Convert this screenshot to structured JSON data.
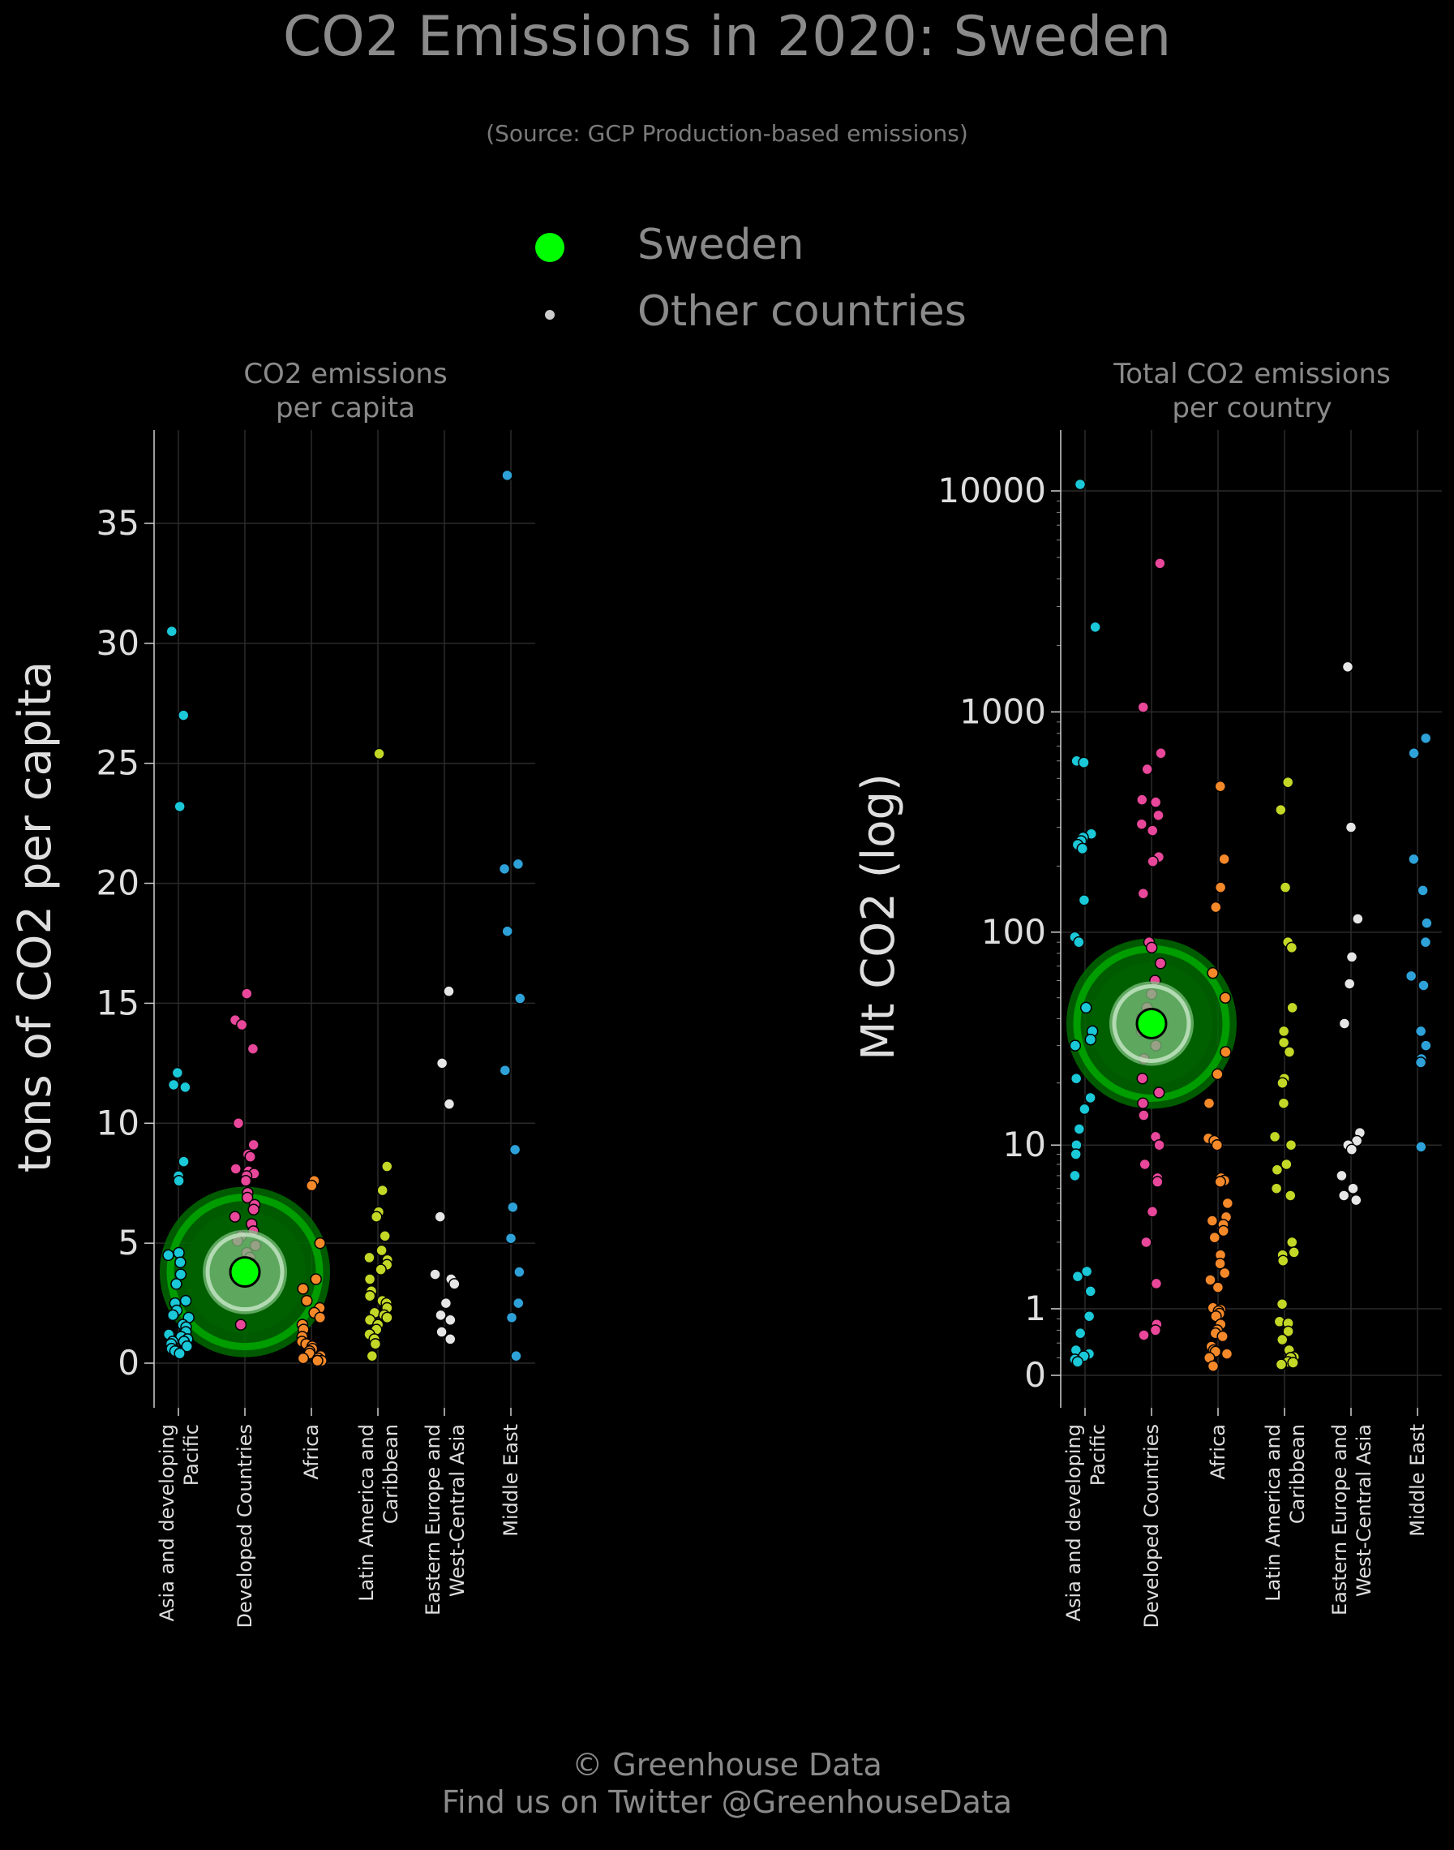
{
  "title": "CO2 Emissions in 2020: Sweden",
  "subtitle": "(Source: GCP Production-based emissions)",
  "legend": [
    {
      "label": "Sweden",
      "color": "#00ff00"
    },
    {
      "label": "Other countries",
      "color": "#cccccc"
    }
  ],
  "footer": {
    "line1": "© Greenhouse Data",
    "line2": "Find us on Twitter @GreenhouseData"
  },
  "colors": {
    "Asia and developing Pacific": "#1ac8d8",
    "Developed Countries": "#e8479a",
    "Africa": "#f5892a",
    "Latin America and Caribbean": "#c3d826",
    "Eastern Europe and West-Central Asia": "#e6e6e6",
    "Middle East": "#2ea2d8",
    "highlight": "#00ff00"
  },
  "chart_data": [
    {
      "type": "scatter",
      "title": "CO2 emissions\nper capita",
      "ylabel": "tons of CO2 per capita",
      "ylim": [
        0,
        38
      ],
      "yscale": "linear",
      "yticks": [
        0,
        5,
        10,
        15,
        20,
        25,
        30,
        35
      ],
      "ytick_labels": [
        "0",
        "5",
        "10",
        "15",
        "20",
        "25",
        "30",
        "35"
      ],
      "categories": [
        "Asia and developing\nPacific",
        "Developed Countries",
        "Africa",
        "Latin America and\nCaribbean",
        "Eastern Europe and\nWest-Central Asia",
        "Middle East"
      ],
      "grid": true,
      "highlight": {
        "name": "Sweden",
        "category": 1,
        "value": 3.8
      },
      "series": [
        {
          "category": 0,
          "values": [
            30.5,
            27.0,
            23.2,
            12.1,
            11.6,
            11.5,
            8.4,
            7.8,
            7.6,
            4.6,
            4.5,
            4.2,
            3.7,
            3.3,
            2.6,
            2.5,
            2.2,
            2.0,
            1.9,
            1.6,
            1.5,
            1.3,
            1.2,
            1.1,
            1.0,
            0.9,
            0.9,
            0.8,
            0.7,
            0.6,
            0.5,
            0.4
          ]
        },
        {
          "category": 1,
          "values": [
            15.4,
            14.3,
            14.1,
            13.1,
            10.0,
            9.1,
            8.7,
            8.6,
            8.1,
            8.0,
            7.9,
            7.8,
            7.6,
            7.1,
            6.9,
            6.6,
            6.4,
            6.1,
            5.8,
            5.5,
            5.3,
            5.1,
            4.9,
            4.6,
            4.4,
            4.2,
            3.9,
            3.5,
            1.6
          ]
        },
        {
          "category": 2,
          "values": [
            7.6,
            7.4,
            5.0,
            3.5,
            3.1,
            2.6,
            2.3,
            2.1,
            1.9,
            1.6,
            1.4,
            1.1,
            0.9,
            0.8,
            0.7,
            0.6,
            0.5,
            0.4,
            0.3,
            0.2,
            0.2,
            0.1,
            0.1,
            0.1
          ]
        },
        {
          "category": 3,
          "values": [
            25.4,
            8.2,
            7.2,
            6.3,
            6.1,
            5.3,
            4.7,
            4.4,
            4.3,
            4.1,
            3.9,
            3.5,
            3.0,
            2.8,
            2.6,
            2.5,
            2.3,
            2.1,
            2.0,
            1.9,
            1.8,
            1.6,
            1.4,
            1.2,
            1.0,
            0.8,
            0.3
          ]
        },
        {
          "category": 4,
          "values": [
            15.5,
            12.5,
            10.8,
            6.1,
            3.7,
            3.5,
            3.3,
            2.5,
            2.0,
            1.8,
            1.3,
            1.0
          ]
        },
        {
          "category": 5,
          "values": [
            37.0,
            20.8,
            20.6,
            18.0,
            15.2,
            12.2,
            8.9,
            6.5,
            5.2,
            3.8,
            2.5,
            1.9,
            0.3
          ]
        }
      ]
    },
    {
      "type": "scatter",
      "title": "Total CO2 emissions\nper country",
      "ylabel": "Mt CO2 (log)",
      "yscale": "log",
      "ylim": [
        0,
        20000
      ],
      "yticks": [
        0,
        1,
        10,
        100,
        1000,
        10000
      ],
      "ytick_labels": [
        "0",
        "1",
        "10",
        "100",
        "1000",
        "10000"
      ],
      "categories": [
        "Asia and developing\nPacific",
        "Developed Countries",
        "Africa",
        "Latin America and\nCaribbean",
        "Eastern Europe and\nWest-Central Asia",
        "Middle East"
      ],
      "grid": true,
      "highlight": {
        "name": "Sweden",
        "category": 1,
        "value": 38
      },
      "series": [
        {
          "category": 0,
          "values": [
            10700,
            2420,
            600,
            590,
            280,
            270,
            260,
            250,
            240,
            140,
            95,
            90,
            45,
            35,
            32,
            30,
            21,
            17,
            15,
            12,
            10,
            9,
            7,
            1.95,
            1.8,
            1.4,
            0.85,
            0.55,
            0.3,
            0.25,
            0.22,
            0.18,
            0.15
          ]
        },
        {
          "category": 1,
          "values": [
            4700,
            1050,
            650,
            550,
            400,
            390,
            340,
            310,
            290,
            220,
            210,
            150,
            90,
            85,
            72,
            60,
            52,
            45,
            40,
            35,
            30,
            26,
            21,
            18,
            16,
            14,
            11,
            10,
            8,
            6.8,
            6.5,
            4.5,
            3.0,
            1.6,
            0.7,
            0.6,
            0.52
          ]
        },
        {
          "category": 2,
          "values": [
            460,
            215,
            160,
            130,
            65,
            50,
            28,
            22,
            16,
            10.8,
            10.5,
            10.0,
            6.8,
            6.6,
            6.5,
            5.0,
            4.2,
            4.0,
            3.8,
            3.5,
            3.2,
            2.5,
            2.2,
            1.9,
            1.7,
            1.5,
            1.02,
            0.98,
            0.95,
            0.9,
            0.85,
            0.7,
            0.6,
            0.55,
            0.5,
            0.35,
            0.3,
            0.28,
            0.25,
            0.2,
            0.1
          ]
        },
        {
          "category": 3,
          "values": [
            480,
            360,
            160,
            90,
            85,
            45,
            35,
            31,
            28,
            21,
            20,
            16,
            11,
            10,
            8,
            7.5,
            6,
            5.5,
            3,
            2.6,
            2.5,
            2.3,
            1.1,
            0.75,
            0.72,
            0.58,
            0.45,
            0.3,
            0.21,
            0.2,
            0.15,
            0.14,
            0.12
          ]
        },
        {
          "category": 4,
          "values": [
            1600,
            300,
            115,
            77,
            58,
            38,
            11.5,
            10.5,
            10,
            9.5,
            7,
            6,
            5.5,
            5.2
          ]
        },
        {
          "category": 5,
          "values": [
            760,
            650,
            215,
            155,
            110,
            90,
            63,
            57,
            35,
            30,
            26,
            25,
            9.8
          ]
        }
      ]
    }
  ]
}
